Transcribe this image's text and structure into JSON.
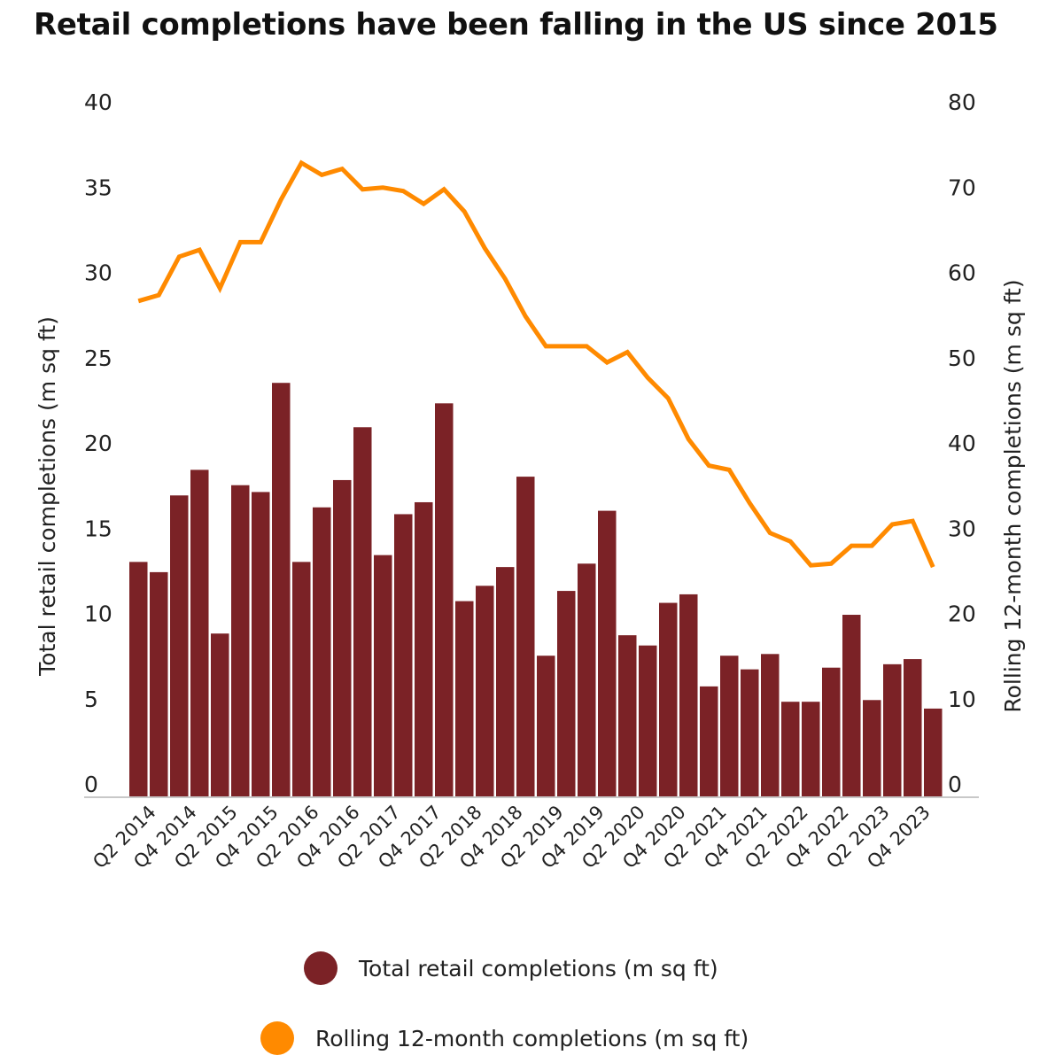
{
  "chart_data": {
    "type": "bar+line",
    "title": "Retail completions have been falling in the US since 2015",
    "categories": [
      "Q1 2014",
      "Q2 2014",
      "Q3 2014",
      "Q4 2014",
      "Q1 2015",
      "Q2 2015",
      "Q3 2015",
      "Q4 2015",
      "Q1 2016",
      "Q2 2016",
      "Q3 2016",
      "Q4 2016",
      "Q1 2017",
      "Q2 2017",
      "Q3 2017",
      "Q4 2017",
      "Q1 2018",
      "Q2 2018",
      "Q3 2018",
      "Q4 2018",
      "Q1 2019",
      "Q2 2019",
      "Q3 2019",
      "Q4 2019",
      "Q1 2020",
      "Q2 2020",
      "Q3 2020",
      "Q4 2020",
      "Q1 2021",
      "Q2 2021",
      "Q3 2021",
      "Q4 2021",
      "Q1 2022",
      "Q2 2022",
      "Q3 2022",
      "Q4 2022",
      "Q1 2023",
      "Q2 2023",
      "Q3 2023",
      "Q4 2023"
    ],
    "tick_labels": [
      "Q2 2014",
      "Q4 2014",
      "Q2 2015",
      "Q4 2015",
      "Q2 2016",
      "Q4 2016",
      "Q2 2017",
      "Q4 2017",
      "Q2 2018",
      "Q4 2018",
      "Q2 2019",
      "Q4 2019",
      "Q2 2020",
      "Q4 2020",
      "Q2 2021",
      "Q4 2021",
      "Q2 2022",
      "Q4 2022",
      "Q2 2023",
      "Q4 2023"
    ],
    "series": [
      {
        "name": "Total retail completions (m sq ft)",
        "type": "bar",
        "axis": "left",
        "color": "#7b2226",
        "values": [
          13.8,
          13.2,
          17.7,
          19.2,
          9.6,
          18.3,
          17.9,
          24.3,
          13.8,
          17.0,
          18.6,
          21.7,
          14.2,
          16.6,
          17.3,
          23.1,
          11.5,
          12.4,
          13.5,
          18.8,
          8.3,
          12.1,
          13.7,
          16.8,
          9.5,
          8.9,
          11.4,
          11.9,
          6.5,
          8.3,
          7.5,
          8.4,
          5.6,
          5.6,
          7.6,
          10.7,
          5.7,
          7.8,
          8.1,
          5.2
        ]
      },
      {
        "name": "Rolling 12-month completions (m sq ft)",
        "type": "line",
        "axis": "right",
        "color": "#ff8a00",
        "values": [
          58.2,
          58.9,
          63.4,
          64.2,
          59.7,
          65.1,
          65.1,
          70.1,
          74.4,
          73.0,
          73.7,
          71.3,
          71.5,
          71.1,
          69.6,
          71.3,
          68.7,
          64.4,
          60.8,
          56.4,
          52.9,
          52.9,
          52.9,
          51.0,
          52.2,
          49.2,
          46.8,
          42.0,
          38.9,
          38.4,
          34.5,
          31.0,
          30.0,
          27.2,
          27.4,
          29.5,
          29.5,
          32.0,
          32.4,
          27.0
        ]
      }
    ],
    "ylabel": "Total retail completions (m sq ft)",
    "ylim": [
      0,
      40
    ],
    "yticks": [
      "0",
      "5",
      "10",
      "15",
      "20",
      "25",
      "30",
      "35",
      "40"
    ],
    "y2label": "Rolling 12-month completions (m sq ft)",
    "y2lim": [
      0,
      80
    ],
    "y2ticks": [
      "0",
      "10",
      "20",
      "30",
      "40",
      "50",
      "60",
      "70",
      "80"
    ],
    "grid": false,
    "legend": "bottom"
  }
}
